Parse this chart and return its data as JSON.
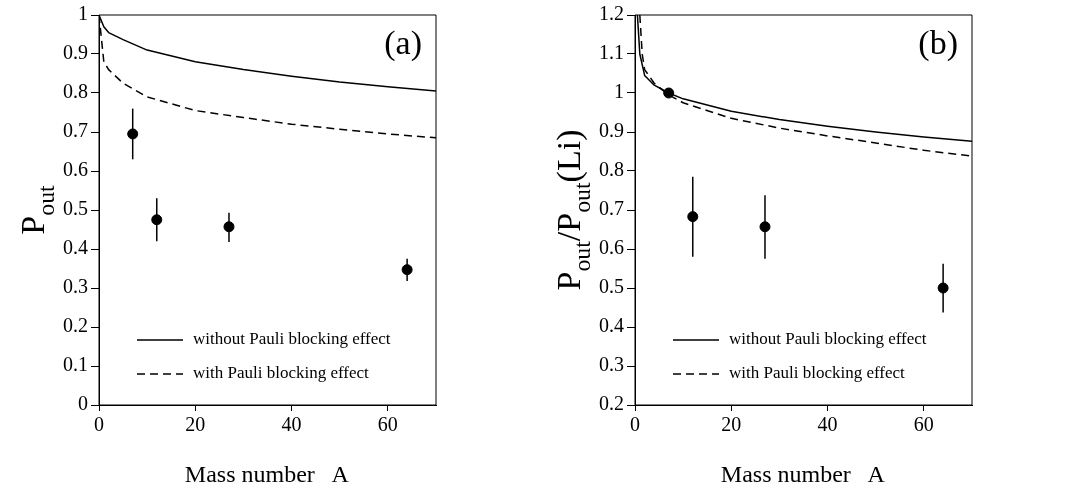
{
  "chart_data": [
    {
      "type": "line",
      "xlabel": "Mass number   A",
      "ylabel": "P$_{out}$",
      "xlim": [
        0,
        70
      ],
      "xticks": [
        0,
        20,
        40,
        60
      ],
      "ylim": [
        0,
        1
      ],
      "yticks": [
        0,
        0.1,
        0.2,
        0.3,
        0.4,
        0.5,
        0.6,
        0.7,
        0.8,
        0.9,
        1
      ],
      "grid": false,
      "legend": "bottom right",
      "annotations": [
        "(a)"
      ],
      "series": [
        {
          "name": "without Pauli blocking effect",
          "marker": "none",
          "line_style": "solid",
          "color": "#000000",
          "x": [
            0,
            1,
            2,
            5,
            10,
            20,
            30,
            40,
            50,
            60,
            70
          ],
          "values": [
            1.0,
            0.97,
            0.955,
            0.937,
            0.91,
            0.88,
            0.86,
            0.843,
            0.828,
            0.816,
            0.805
          ]
        },
        {
          "name": "with Pauli blocking effect",
          "marker": "none",
          "line_style": "dashed",
          "color": "#000000",
          "x": [
            0,
            0.5,
            1,
            2,
            5,
            10,
            20,
            30,
            40,
            50,
            60,
            70
          ],
          "values": [
            1.0,
            0.94,
            0.88,
            0.86,
            0.825,
            0.79,
            0.755,
            0.737,
            0.72,
            0.707,
            0.695,
            0.685
          ]
        },
        {
          "type": "scatter",
          "marker": "circle",
          "color": "#000000",
          "x": [
            7,
            12,
            27,
            64
          ],
          "values": [
            0.695,
            0.475,
            0.457,
            0.347
          ],
          "errors": [
            [
              0.63,
              0.76
            ],
            [
              0.42,
              0.53
            ],
            [
              0.418,
              0.493
            ],
            [
              0.318,
              0.375
            ]
          ]
        }
      ]
    },
    {
      "type": "line",
      "xlabel": "Mass number   A",
      "ylabel": "P$_{out}$/P$_{out}$(Li)",
      "xlim": [
        0,
        70
      ],
      "xticks": [
        0,
        20,
        40,
        60
      ],
      "ylim": [
        0.2,
        1.2
      ],
      "yticks": [
        0.2,
        0.3,
        0.4,
        0.5,
        0.6,
        0.7,
        0.8,
        0.9,
        1,
        1.1,
        1.2
      ],
      "grid": false,
      "legend": "bottom right",
      "annotations": [
        "(b)"
      ],
      "series": [
        {
          "name": "without Pauli blocking effect",
          "marker": "none",
          "line_style": "solid",
          "color": "#000000",
          "x": [
            0.5,
            1,
            2,
            4,
            7,
            10,
            20,
            30,
            40,
            50,
            60,
            70
          ],
          "values": [
            1.2,
            1.1,
            1.045,
            1.02,
            1.0,
            0.985,
            0.953,
            0.932,
            0.915,
            0.9,
            0.887,
            0.876
          ]
        },
        {
          "name": "with Pauli blocking effect",
          "marker": "none",
          "line_style": "dashed",
          "color": "#000000",
          "x": [
            1,
            1.5,
            2,
            4,
            7,
            10,
            20,
            30,
            40,
            50,
            60,
            70
          ],
          "values": [
            1.2,
            1.1,
            1.06,
            1.025,
            0.995,
            0.975,
            0.935,
            0.91,
            0.89,
            0.872,
            0.853,
            0.838
          ]
        },
        {
          "type": "scatter",
          "marker": "circle",
          "color": "#000000",
          "x": [
            7,
            12,
            27,
            64
          ],
          "values": [
            1.0,
            0.683,
            0.657,
            0.5
          ],
          "errors": [
            null,
            [
              0.58,
              0.785
            ],
            [
              0.575,
              0.738
            ],
            [
              0.437,
              0.562
            ]
          ]
        }
      ]
    }
  ]
}
